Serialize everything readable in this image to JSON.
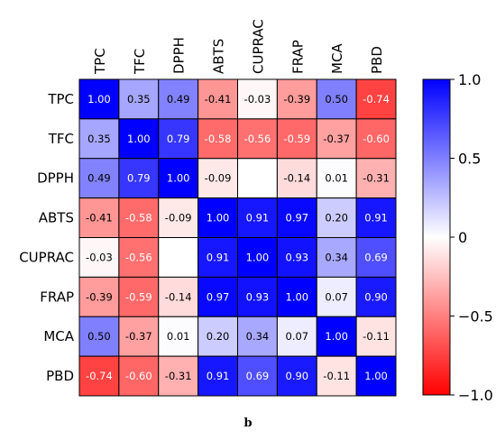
{
  "caption": "b",
  "chart_data": {
    "type": "heatmap",
    "variables": [
      "TPC",
      "TFC",
      "DPPH",
      "ABTS",
      "CUPRAC",
      "FRAP",
      "MCA",
      "PBD"
    ],
    "matrix": [
      [
        1.0,
        0.35,
        0.49,
        -0.41,
        -0.03,
        -0.39,
        0.5,
        -0.74
      ],
      [
        0.35,
        1.0,
        0.79,
        -0.58,
        -0.56,
        -0.59,
        -0.37,
        -0.6
      ],
      [
        0.49,
        0.79,
        1.0,
        -0.09,
        null,
        -0.14,
        0.01,
        -0.31
      ],
      [
        -0.41,
        -0.58,
        -0.09,
        1.0,
        0.91,
        0.97,
        0.2,
        0.91
      ],
      [
        -0.03,
        -0.56,
        null,
        0.91,
        1.0,
        0.93,
        0.34,
        0.69
      ],
      [
        -0.39,
        -0.59,
        -0.14,
        0.97,
        0.93,
        1.0,
        0.07,
        0.9
      ],
      [
        0.5,
        -0.37,
        0.01,
        0.2,
        0.34,
        0.07,
        1.0,
        -0.11
      ],
      [
        -0.74,
        -0.6,
        -0.31,
        0.91,
        0.69,
        0.9,
        -0.11,
        1.0
      ]
    ],
    "labels": [
      [
        "1.00",
        "0.35",
        "0.49",
        "-0.41",
        "-0.03",
        "-0.39",
        "0.50",
        "-0.74"
      ],
      [
        "0.35",
        "1.00",
        "0.79",
        "-0.58",
        "-0.56",
        "-0.59",
        "-0.37",
        "-0.60"
      ],
      [
        "0.49",
        "0.79",
        "1.00",
        "-0.09",
        "",
        "-0.14",
        "0.01",
        "-0.31"
      ],
      [
        "-0.41",
        "-0.58",
        "-0.09",
        "1.00",
        "0.91",
        "0.97",
        "0.20",
        "0.91"
      ],
      [
        "-0.03",
        "-0.56",
        "",
        "0.91",
        "1.00",
        "0.93",
        "0.34",
        "0.69"
      ],
      [
        "-0.39",
        "-0.59",
        "-0.14",
        "0.97",
        "0.93",
        "1.00",
        "0.07",
        "0.90"
      ],
      [
        "0.50",
        "-0.37",
        "0.01",
        "0.20",
        "0.34",
        "0.07",
        "1.00",
        "-0.11"
      ],
      [
        "-0.74",
        "-0.60",
        "-0.31",
        "0.91",
        "0.69",
        "0.90",
        "-0.11",
        "1.00"
      ]
    ],
    "colorscale": {
      "min": -1.0,
      "max": 1.0,
      "low_color": "#ff0000",
      "mid_color": "#ffffff",
      "high_color": "#0000ff"
    },
    "colorbar_ticks": [
      1.0,
      0.5,
      0,
      -0.5,
      -1.0
    ],
    "colorbar_tick_labels": [
      "1.0",
      "0.5",
      "0",
      "−0.5",
      "−1.0"
    ],
    "grid": true,
    "legend": "right"
  }
}
